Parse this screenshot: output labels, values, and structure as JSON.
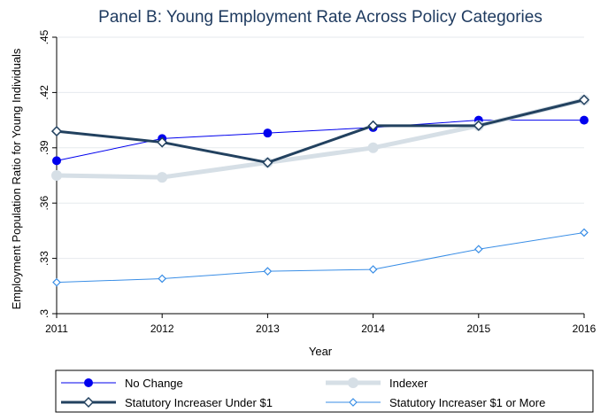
{
  "chart_data": {
    "type": "line",
    "title": "Panel B: Young Employment Rate Across Policy Categories",
    "xlabel": "Year",
    "ylabel": "Employment Population Ratio for Young Individuals",
    "x": [
      2011,
      2012,
      2013,
      2014,
      2015,
      2016
    ],
    "xlim": [
      2011,
      2016
    ],
    "ylim": [
      0.3,
      0.45
    ],
    "yticks": [
      ".3",
      ".33",
      ".36",
      ".39",
      ".42",
      ".45"
    ],
    "yticks_values": [
      0.3,
      0.33,
      0.36,
      0.39,
      0.42,
      0.45
    ],
    "xticks": [
      "2011",
      "2012",
      "2013",
      "2014",
      "2015",
      "2016"
    ],
    "grid": true,
    "legend_position": "bottom",
    "series": [
      {
        "name": "No Change",
        "values": [
          0.383,
          0.395,
          0.398,
          0.401,
          0.405,
          0.405
        ],
        "color": "#0000ee",
        "marker": "circle"
      },
      {
        "name": "Indexer",
        "values": [
          0.375,
          0.374,
          0.382,
          0.39,
          0.402,
          0.416
        ],
        "color": "#d6dfe6",
        "marker": "circle"
      },
      {
        "name": "Statutory Increaser Under $1",
        "values": [
          0.399,
          0.393,
          0.382,
          0.402,
          0.402,
          0.416
        ],
        "color": "#22415f",
        "marker": "diamond"
      },
      {
        "name": "Statutory Increaser $1 or More",
        "values": [
          0.317,
          0.319,
          0.323,
          0.324,
          0.335,
          0.344
        ],
        "color": "#3a8ee6",
        "marker": "diamond"
      }
    ]
  }
}
